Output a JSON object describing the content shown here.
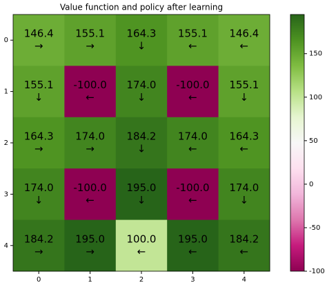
{
  "chart_data": {
    "type": "heatmap",
    "title": "Value function and policy after learning",
    "x_categories": [
      "0",
      "1",
      "2",
      "3",
      "4"
    ],
    "y_categories": [
      "0",
      "1",
      "2",
      "3",
      "4"
    ],
    "values": [
      [
        146.4,
        155.1,
        164.3,
        155.1,
        146.4
      ],
      [
        155.1,
        -100,
        174,
        -100,
        155.1
      ],
      [
        164.3,
        174,
        184.2,
        174,
        164.3
      ],
      [
        174,
        -100,
        195,
        -100,
        174
      ],
      [
        184.2,
        195,
        100,
        195,
        184.2
      ]
    ],
    "value_labels": [
      [
        "146.4",
        "155.1",
        "164.3",
        "155.1",
        "146.4"
      ],
      [
        "155.1",
        "-100.0",
        "174.0",
        "-100.0",
        "155.1"
      ],
      [
        "164.3",
        "174.0",
        "184.2",
        "174.0",
        "164.3"
      ],
      [
        "174.0",
        "-100.0",
        "195.0",
        "-100.0",
        "174.0"
      ],
      [
        "184.2",
        "195.0",
        "100.0",
        "195.0",
        "184.2"
      ]
    ],
    "policy": [
      [
        "→",
        "→",
        "↓",
        "←",
        "←"
      ],
      [
        "↓",
        "←",
        "↓",
        "←",
        "↓"
      ],
      [
        "→",
        "→",
        "↓",
        "←",
        "←"
      ],
      [
        "↓",
        "←",
        "↓",
        "←",
        "↓"
      ],
      [
        "→",
        "→",
        "←",
        "←",
        "←"
      ]
    ],
    "colormap": "PiYG",
    "zlim": [
      -100,
      195
    ],
    "zticks": [
      -100,
      -50,
      0,
      50,
      100,
      150
    ]
  }
}
